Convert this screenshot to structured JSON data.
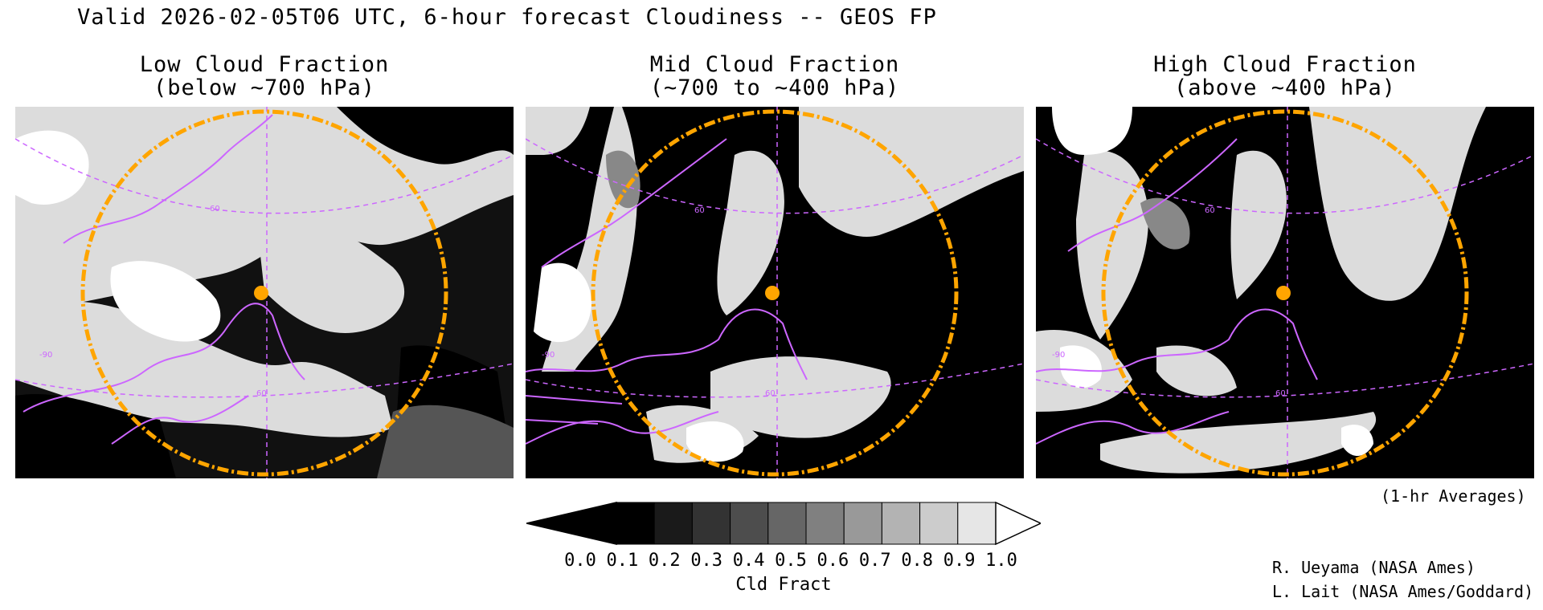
{
  "title": "Valid 2026-02-05T06 UTC, 6-hour forecast Cloudiness -- GEOS FP",
  "panels": [
    {
      "title_line1": "Low Cloud Fraction",
      "title_line2": "(below ~700 hPa)",
      "grid_label_a": "60",
      "grid_label_b": "-90",
      "grid_label_c": "60"
    },
    {
      "title_line1": "Mid Cloud Fraction",
      "title_line2": "(~700 to ~400 hPa)",
      "grid_label_a": "60",
      "grid_label_b": "-90",
      "grid_label_c": "60"
    },
    {
      "title_line1": "High Cloud Fraction",
      "title_line2": "(above ~400 hPa)",
      "grid_label_a": "60",
      "grid_label_b": "-90",
      "grid_label_c": "60"
    }
  ],
  "averages_note": "(1-hr Averages)",
  "colorbar": {
    "ticks": [
      "0.0",
      "0.1",
      "0.2",
      "0.3",
      "0.4",
      "0.5",
      "0.6",
      "0.7",
      "0.8",
      "0.9",
      "1.0"
    ],
    "label": "Cld Fract",
    "colors": [
      "#000000",
      "#1a1a1a",
      "#333333",
      "#4d4d4d",
      "#666666",
      "#808080",
      "#999999",
      "#b3b3b3",
      "#cccccc",
      "#e6e6e6"
    ],
    "under_color": "#000000",
    "over_color": "#ffffff"
  },
  "credits": {
    "line1": "R. Ueyama (NASA Ames)",
    "line2": "L. Lait (NASA Ames/Goddard)"
  },
  "colors": {
    "coastline": "#cc66ff",
    "range_ring": "#ffa500",
    "site_marker": "#ffa500"
  }
}
